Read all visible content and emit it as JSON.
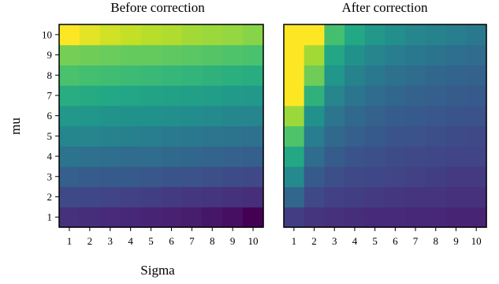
{
  "chart_data": [
    {
      "type": "heatmap",
      "title": "Before correction",
      "xlabel": "Sigma",
      "ylabel": "mu",
      "x": [
        1,
        2,
        3,
        4,
        5,
        6,
        7,
        8,
        9,
        10
      ],
      "y": [
        1,
        2,
        3,
        4,
        5,
        6,
        7,
        8,
        9,
        10
      ],
      "colormap": "viridis",
      "grid": false,
      "values": [
        [
          0.14,
          0.13,
          0.12,
          0.11,
          0.1,
          0.09,
          0.08,
          0.06,
          0.04,
          0.0
        ],
        [
          0.22,
          0.21,
          0.2,
          0.19,
          0.18,
          0.17,
          0.16,
          0.15,
          0.14,
          0.13
        ],
        [
          0.3,
          0.29,
          0.28,
          0.28,
          0.27,
          0.26,
          0.25,
          0.24,
          0.23,
          0.22
        ],
        [
          0.38,
          0.37,
          0.36,
          0.35,
          0.35,
          0.34,
          0.33,
          0.32,
          0.31,
          0.3
        ],
        [
          0.46,
          0.45,
          0.44,
          0.43,
          0.42,
          0.41,
          0.4,
          0.39,
          0.38,
          0.37
        ],
        [
          0.53,
          0.52,
          0.51,
          0.5,
          0.5,
          0.49,
          0.48,
          0.47,
          0.46,
          0.45
        ],
        [
          0.62,
          0.61,
          0.6,
          0.59,
          0.58,
          0.57,
          0.56,
          0.55,
          0.54,
          0.53
        ],
        [
          0.71,
          0.7,
          0.69,
          0.68,
          0.67,
          0.66,
          0.65,
          0.64,
          0.63,
          0.62
        ],
        [
          0.79,
          0.78,
          0.77,
          0.76,
          0.76,
          0.75,
          0.74,
          0.73,
          0.72,
          0.71
        ],
        [
          1.0,
          0.96,
          0.93,
          0.91,
          0.89,
          0.88,
          0.86,
          0.85,
          0.84,
          0.82
        ]
      ]
    },
    {
      "type": "heatmap",
      "title": "After correction",
      "xlabel": "",
      "ylabel": "",
      "x": [
        1,
        2,
        3,
        4,
        5,
        6,
        7,
        8,
        9,
        10
      ],
      "y": [
        1,
        2,
        3,
        4,
        5,
        6,
        7,
        8,
        9,
        10
      ],
      "colormap": "viridis",
      "grid": false,
      "values": [
        [
          0.18,
          0.15,
          0.14,
          0.13,
          0.12,
          0.12,
          0.11,
          0.11,
          0.1,
          0.1
        ],
        [
          0.33,
          0.22,
          0.19,
          0.18,
          0.17,
          0.16,
          0.15,
          0.15,
          0.14,
          0.14
        ],
        [
          0.47,
          0.28,
          0.24,
          0.22,
          0.21,
          0.2,
          0.19,
          0.18,
          0.17,
          0.17
        ],
        [
          0.6,
          0.35,
          0.29,
          0.26,
          0.24,
          0.23,
          0.22,
          0.21,
          0.2,
          0.2
        ],
        [
          0.72,
          0.42,
          0.34,
          0.3,
          0.28,
          0.26,
          0.25,
          0.24,
          0.23,
          0.22
        ],
        [
          0.85,
          0.5,
          0.39,
          0.34,
          0.31,
          0.29,
          0.28,
          0.27,
          0.26,
          0.25
        ],
        [
          1.0,
          0.64,
          0.45,
          0.39,
          0.35,
          0.33,
          0.31,
          0.3,
          0.29,
          0.28
        ],
        [
          1.0,
          0.78,
          0.52,
          0.44,
          0.4,
          0.37,
          0.35,
          0.33,
          0.32,
          0.31
        ],
        [
          1.0,
          0.86,
          0.59,
          0.5,
          0.45,
          0.42,
          0.4,
          0.38,
          0.36,
          0.35
        ],
        [
          1.0,
          1.0,
          0.7,
          0.6,
          0.53,
          0.49,
          0.46,
          0.44,
          0.42,
          0.4
        ]
      ]
    }
  ]
}
